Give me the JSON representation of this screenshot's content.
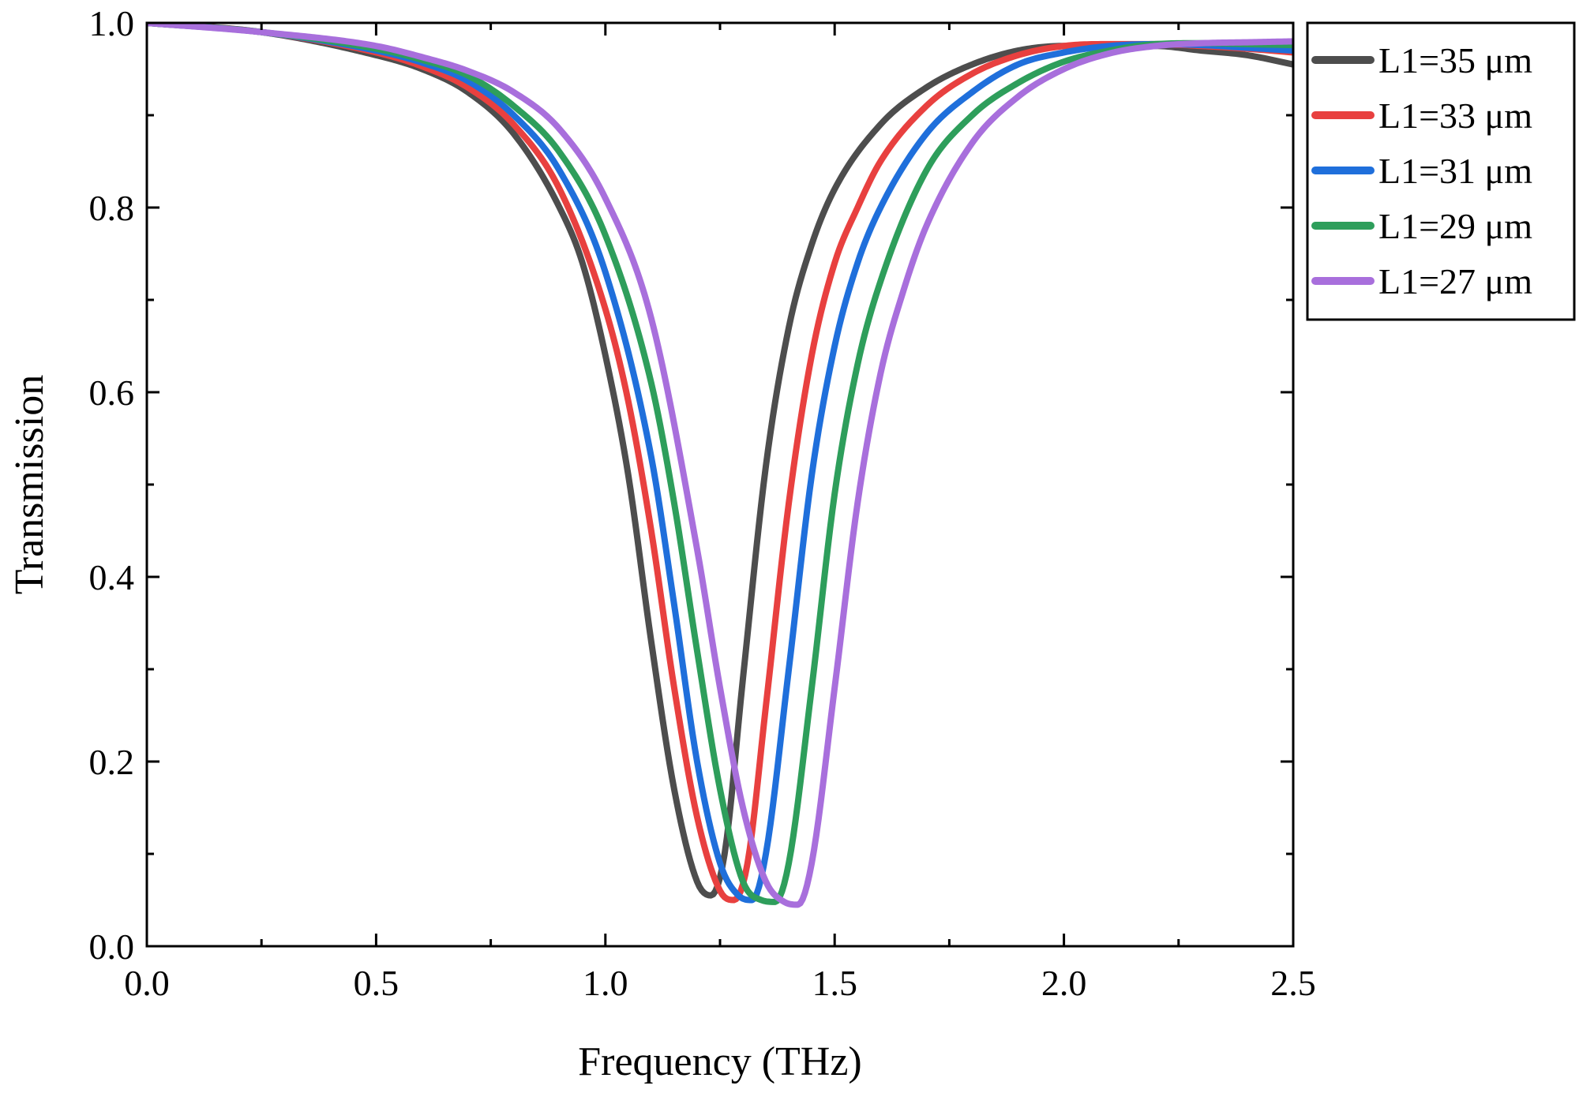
{
  "chart_data": {
    "type": "line",
    "title": "",
    "xlabel": "Frequency (THz)",
    "ylabel": "Transmission",
    "xlim": [
      0.0,
      2.5
    ],
    "ylim": [
      0.0,
      1.0
    ],
    "x_ticks": [
      "0.0",
      "0.5",
      "1.0",
      "1.5",
      "2.0",
      "2.5"
    ],
    "y_ticks": [
      "0.0",
      "0.2",
      "0.4",
      "0.6",
      "0.8",
      "1.0"
    ],
    "grid": false,
    "legend_position": "right",
    "series": [
      {
        "name": "L1=35 μm",
        "color": "#4d4d4d",
        "x": [
          0.0,
          0.25,
          0.5,
          0.6,
          0.7,
          0.8,
          0.9,
          0.95,
          1.0,
          1.05,
          1.1,
          1.15,
          1.2,
          1.23,
          1.26,
          1.3,
          1.35,
          1.4,
          1.45,
          1.5,
          1.6,
          1.7,
          1.8,
          1.9,
          2.0,
          2.1,
          2.2,
          2.3,
          2.4,
          2.5
        ],
        "y": [
          1.0,
          0.99,
          0.965,
          0.95,
          0.925,
          0.88,
          0.8,
          0.74,
          0.64,
          0.51,
          0.33,
          0.17,
          0.07,
          0.055,
          0.1,
          0.29,
          0.52,
          0.67,
          0.76,
          0.82,
          0.89,
          0.93,
          0.955,
          0.97,
          0.975,
          0.975,
          0.975,
          0.97,
          0.965,
          0.955
        ]
      },
      {
        "name": "L1=33 μm",
        "color": "#e8403f",
        "x": [
          0.0,
          0.25,
          0.5,
          0.6,
          0.7,
          0.8,
          0.9,
          1.0,
          1.05,
          1.1,
          1.15,
          1.2,
          1.25,
          1.28,
          1.31,
          1.35,
          1.4,
          1.45,
          1.5,
          1.55,
          1.6,
          1.7,
          1.8,
          1.9,
          2.0,
          2.1,
          2.2,
          2.3,
          2.4,
          2.5
        ],
        "y": [
          1.0,
          0.99,
          0.968,
          0.953,
          0.93,
          0.89,
          0.82,
          0.69,
          0.59,
          0.45,
          0.28,
          0.14,
          0.06,
          0.05,
          0.09,
          0.26,
          0.48,
          0.64,
          0.74,
          0.8,
          0.85,
          0.91,
          0.945,
          0.965,
          0.975,
          0.977,
          0.977,
          0.975,
          0.972,
          0.968
        ]
      },
      {
        "name": "L1=31 μm",
        "color": "#1f6fdb",
        "x": [
          0.0,
          0.25,
          0.5,
          0.6,
          0.7,
          0.8,
          0.9,
          1.0,
          1.1,
          1.15,
          1.2,
          1.25,
          1.29,
          1.32,
          1.35,
          1.4,
          1.45,
          1.5,
          1.55,
          1.6,
          1.7,
          1.8,
          1.9,
          2.0,
          2.1,
          2.2,
          2.3,
          2.4,
          2.5
        ],
        "y": [
          1.0,
          0.99,
          0.97,
          0.957,
          0.937,
          0.9,
          0.84,
          0.73,
          0.53,
          0.37,
          0.2,
          0.09,
          0.055,
          0.05,
          0.1,
          0.3,
          0.51,
          0.65,
          0.74,
          0.8,
          0.88,
          0.925,
          0.955,
          0.968,
          0.975,
          0.977,
          0.976,
          0.973,
          0.97
        ]
      },
      {
        "name": "L1=29 μm",
        "color": "#2e9e5b",
        "x": [
          0.0,
          0.25,
          0.5,
          0.6,
          0.7,
          0.8,
          0.9,
          1.0,
          1.1,
          1.15,
          1.2,
          1.25,
          1.3,
          1.34,
          1.37,
          1.4,
          1.45,
          1.5,
          1.55,
          1.6,
          1.7,
          1.8,
          1.9,
          2.0,
          2.1,
          2.2,
          2.3,
          2.4,
          2.5
        ],
        "y": [
          1.0,
          0.99,
          0.972,
          0.96,
          0.943,
          0.91,
          0.86,
          0.77,
          0.61,
          0.48,
          0.32,
          0.17,
          0.07,
          0.05,
          0.048,
          0.09,
          0.28,
          0.49,
          0.63,
          0.72,
          0.84,
          0.9,
          0.935,
          0.958,
          0.97,
          0.977,
          0.978,
          0.977,
          0.976
        ]
      },
      {
        "name": "L1=27 μm",
        "color": "#a86fdc",
        "x": [
          0.0,
          0.25,
          0.5,
          0.6,
          0.7,
          0.8,
          0.9,
          1.0,
          1.1,
          1.2,
          1.25,
          1.3,
          1.35,
          1.39,
          1.42,
          1.45,
          1.5,
          1.55,
          1.6,
          1.65,
          1.7,
          1.8,
          1.9,
          2.0,
          2.1,
          2.2,
          2.3,
          2.4,
          2.5
        ],
        "y": [
          1.0,
          0.99,
          0.975,
          0.963,
          0.948,
          0.925,
          0.885,
          0.81,
          0.68,
          0.43,
          0.28,
          0.15,
          0.07,
          0.048,
          0.045,
          0.09,
          0.28,
          0.48,
          0.62,
          0.71,
          0.78,
          0.87,
          0.92,
          0.95,
          0.967,
          0.975,
          0.978,
          0.979,
          0.98
        ]
      }
    ]
  }
}
